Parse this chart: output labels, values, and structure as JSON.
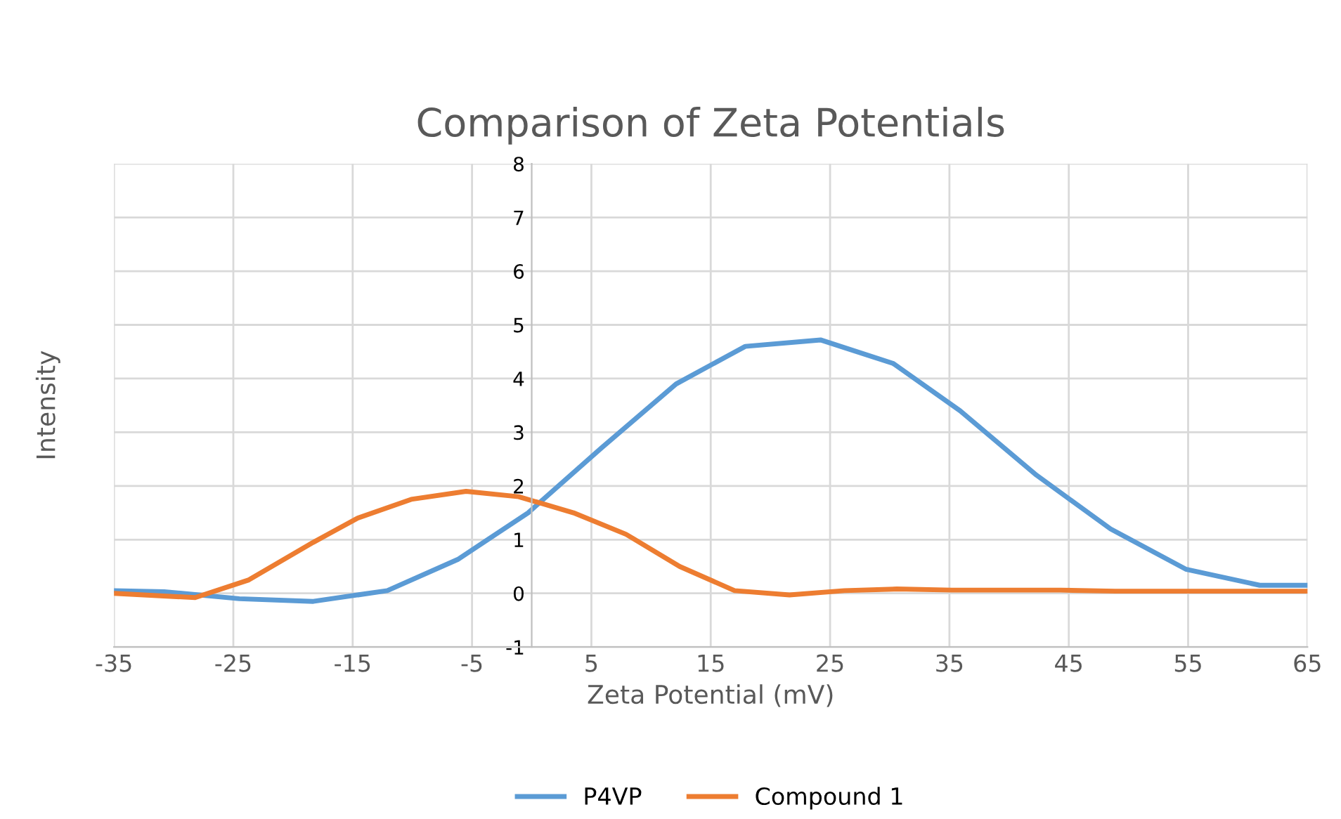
{
  "chart_data": {
    "type": "line",
    "title": "Comparison of Zeta Potentials",
    "xlabel": "Zeta Potential (mV)",
    "ylabel": "Intensity",
    "xlim": [
      -35,
      65
    ],
    "xticks": [
      -35,
      -25,
      -15,
      -5,
      5,
      15,
      25,
      35,
      45,
      55,
      65
    ],
    "ylim": [
      -1,
      8
    ],
    "yticks": [
      -1,
      0,
      1,
      2,
      3,
      4,
      5,
      6,
      7,
      8
    ],
    "grid": true,
    "legend": "bottom",
    "marker": "none",
    "line_style": "solid",
    "series": [
      {
        "name": "P4VP",
        "color": "#5b9bd5",
        "x": [
          -35,
          -30.8,
          -24.5,
          -18.3,
          -12.1,
          -6.2,
          -0.3,
          5.8,
          12.1,
          17.9,
          24.2,
          30.3,
          35.9,
          42.3,
          48.5,
          54.8,
          61.0,
          65
        ],
        "values": [
          0.05,
          0.03,
          -0.1,
          -0.15,
          0.05,
          0.63,
          1.5,
          2.7,
          3.9,
          4.6,
          4.72,
          4.28,
          3.4,
          2.2,
          1.2,
          0.45,
          0.15,
          0.15
        ]
      },
      {
        "name": "Compound 1",
        "color": "#ed7d31",
        "x": [
          -35,
          -28.2,
          -23.7,
          -18.3,
          -14.6,
          -10.1,
          -5.5,
          -1.1,
          3.5,
          7.9,
          12.4,
          17.0,
          21.6,
          26.2,
          30.6,
          35.2,
          39.8,
          44.3,
          48.9,
          53.5,
          58.0,
          62.6,
          65
        ],
        "values": [
          0.0,
          -0.08,
          0.25,
          0.95,
          1.4,
          1.75,
          1.9,
          1.8,
          1.5,
          1.1,
          0.5,
          0.05,
          -0.03,
          0.05,
          0.08,
          0.06,
          0.06,
          0.06,
          0.04,
          0.04,
          0.04,
          0.04,
          0.04
        ]
      }
    ]
  }
}
